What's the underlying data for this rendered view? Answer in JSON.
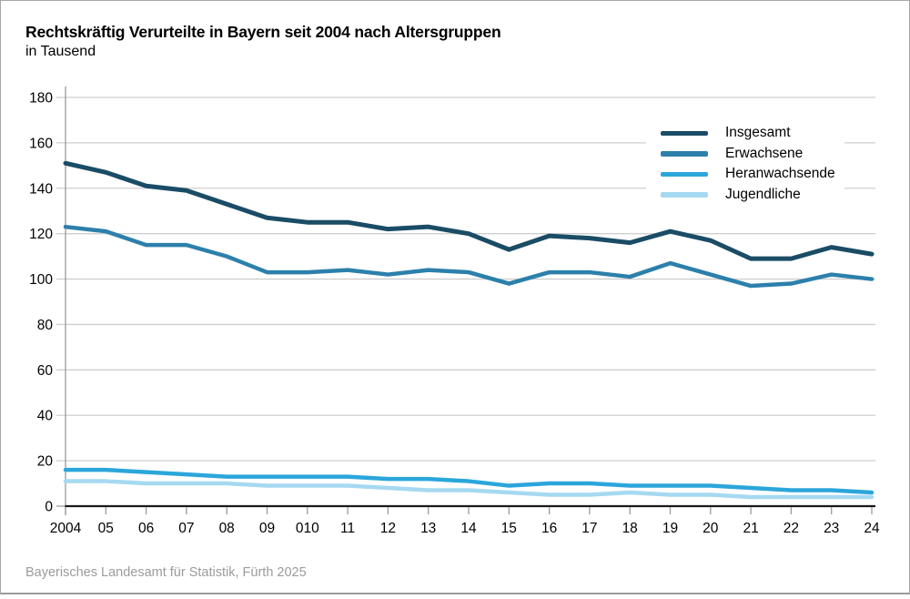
{
  "header": {
    "title": "Rechtskräftig Verurteilte in Bayern seit 2004 nach Altersgruppen",
    "subtitle": "in Tausend"
  },
  "footer": {
    "source": "Bayerisches Landesamt für Statistik, Fürth 2025"
  },
  "colors": {
    "insgesamt": "#1A4C66",
    "erwachsene": "#2C80AB",
    "heranwachsende": "#2BA6DB",
    "jugendliche": "#A6D9F1",
    "gridline": "#cfcfcf",
    "axis": "#1a1a1a",
    "tick": "#9b9b9b",
    "footer_text": "#9b9b9b"
  },
  "chart_data": {
    "type": "line",
    "title": "Rechtskräftig Verurteilte in Bayern seit 2004 nach Altersgruppen",
    "subtitle": "in Tausend",
    "categories": [
      "2004",
      "05",
      "06",
      "07",
      "08",
      "09",
      "010",
      "11",
      "12",
      "13",
      "14",
      "15",
      "16",
      "17",
      "18",
      "19",
      "20",
      "21",
      "22",
      "23",
      "24"
    ],
    "yticks": [
      0,
      20,
      40,
      60,
      80,
      100,
      120,
      140,
      160,
      180
    ],
    "ylim": [
      0,
      180
    ],
    "ytick_step": 20,
    "grid": "horizontal",
    "legend_position": "inside-top-right",
    "series": [
      {
        "name": "Insgesamt",
        "color": "#1A4C66",
        "width": 5,
        "values": [
          151,
          147,
          141,
          139,
          133,
          127,
          125,
          125,
          122,
          123,
          120,
          113,
          119,
          118,
          116,
          121,
          117,
          109,
          109,
          114,
          111
        ]
      },
      {
        "name": "Erwachsene",
        "color": "#2C80AB",
        "width": 4.5,
        "values": [
          123,
          121,
          115,
          115,
          110,
          103,
          103,
          104,
          102,
          104,
          103,
          98,
          103,
          103,
          101,
          107,
          102,
          97,
          98,
          102,
          100
        ]
      },
      {
        "name": "Heranwachsende",
        "color": "#2BA6DB",
        "width": 4.5,
        "values": [
          16,
          16,
          15,
          14,
          13,
          13,
          13,
          13,
          12,
          12,
          11,
          9,
          10,
          10,
          9,
          9,
          9,
          8,
          7,
          7,
          6
        ]
      },
      {
        "name": "Jugendliche",
        "color": "#A6D9F1",
        "width": 4.5,
        "values": [
          11,
          11,
          10,
          10,
          10,
          9,
          9,
          9,
          8,
          7,
          7,
          6,
          5,
          5,
          6,
          5,
          5,
          4,
          4,
          4,
          4
        ]
      }
    ],
    "footer": "Bayerisches Landesamt für Statistik, Fürth 2025"
  }
}
